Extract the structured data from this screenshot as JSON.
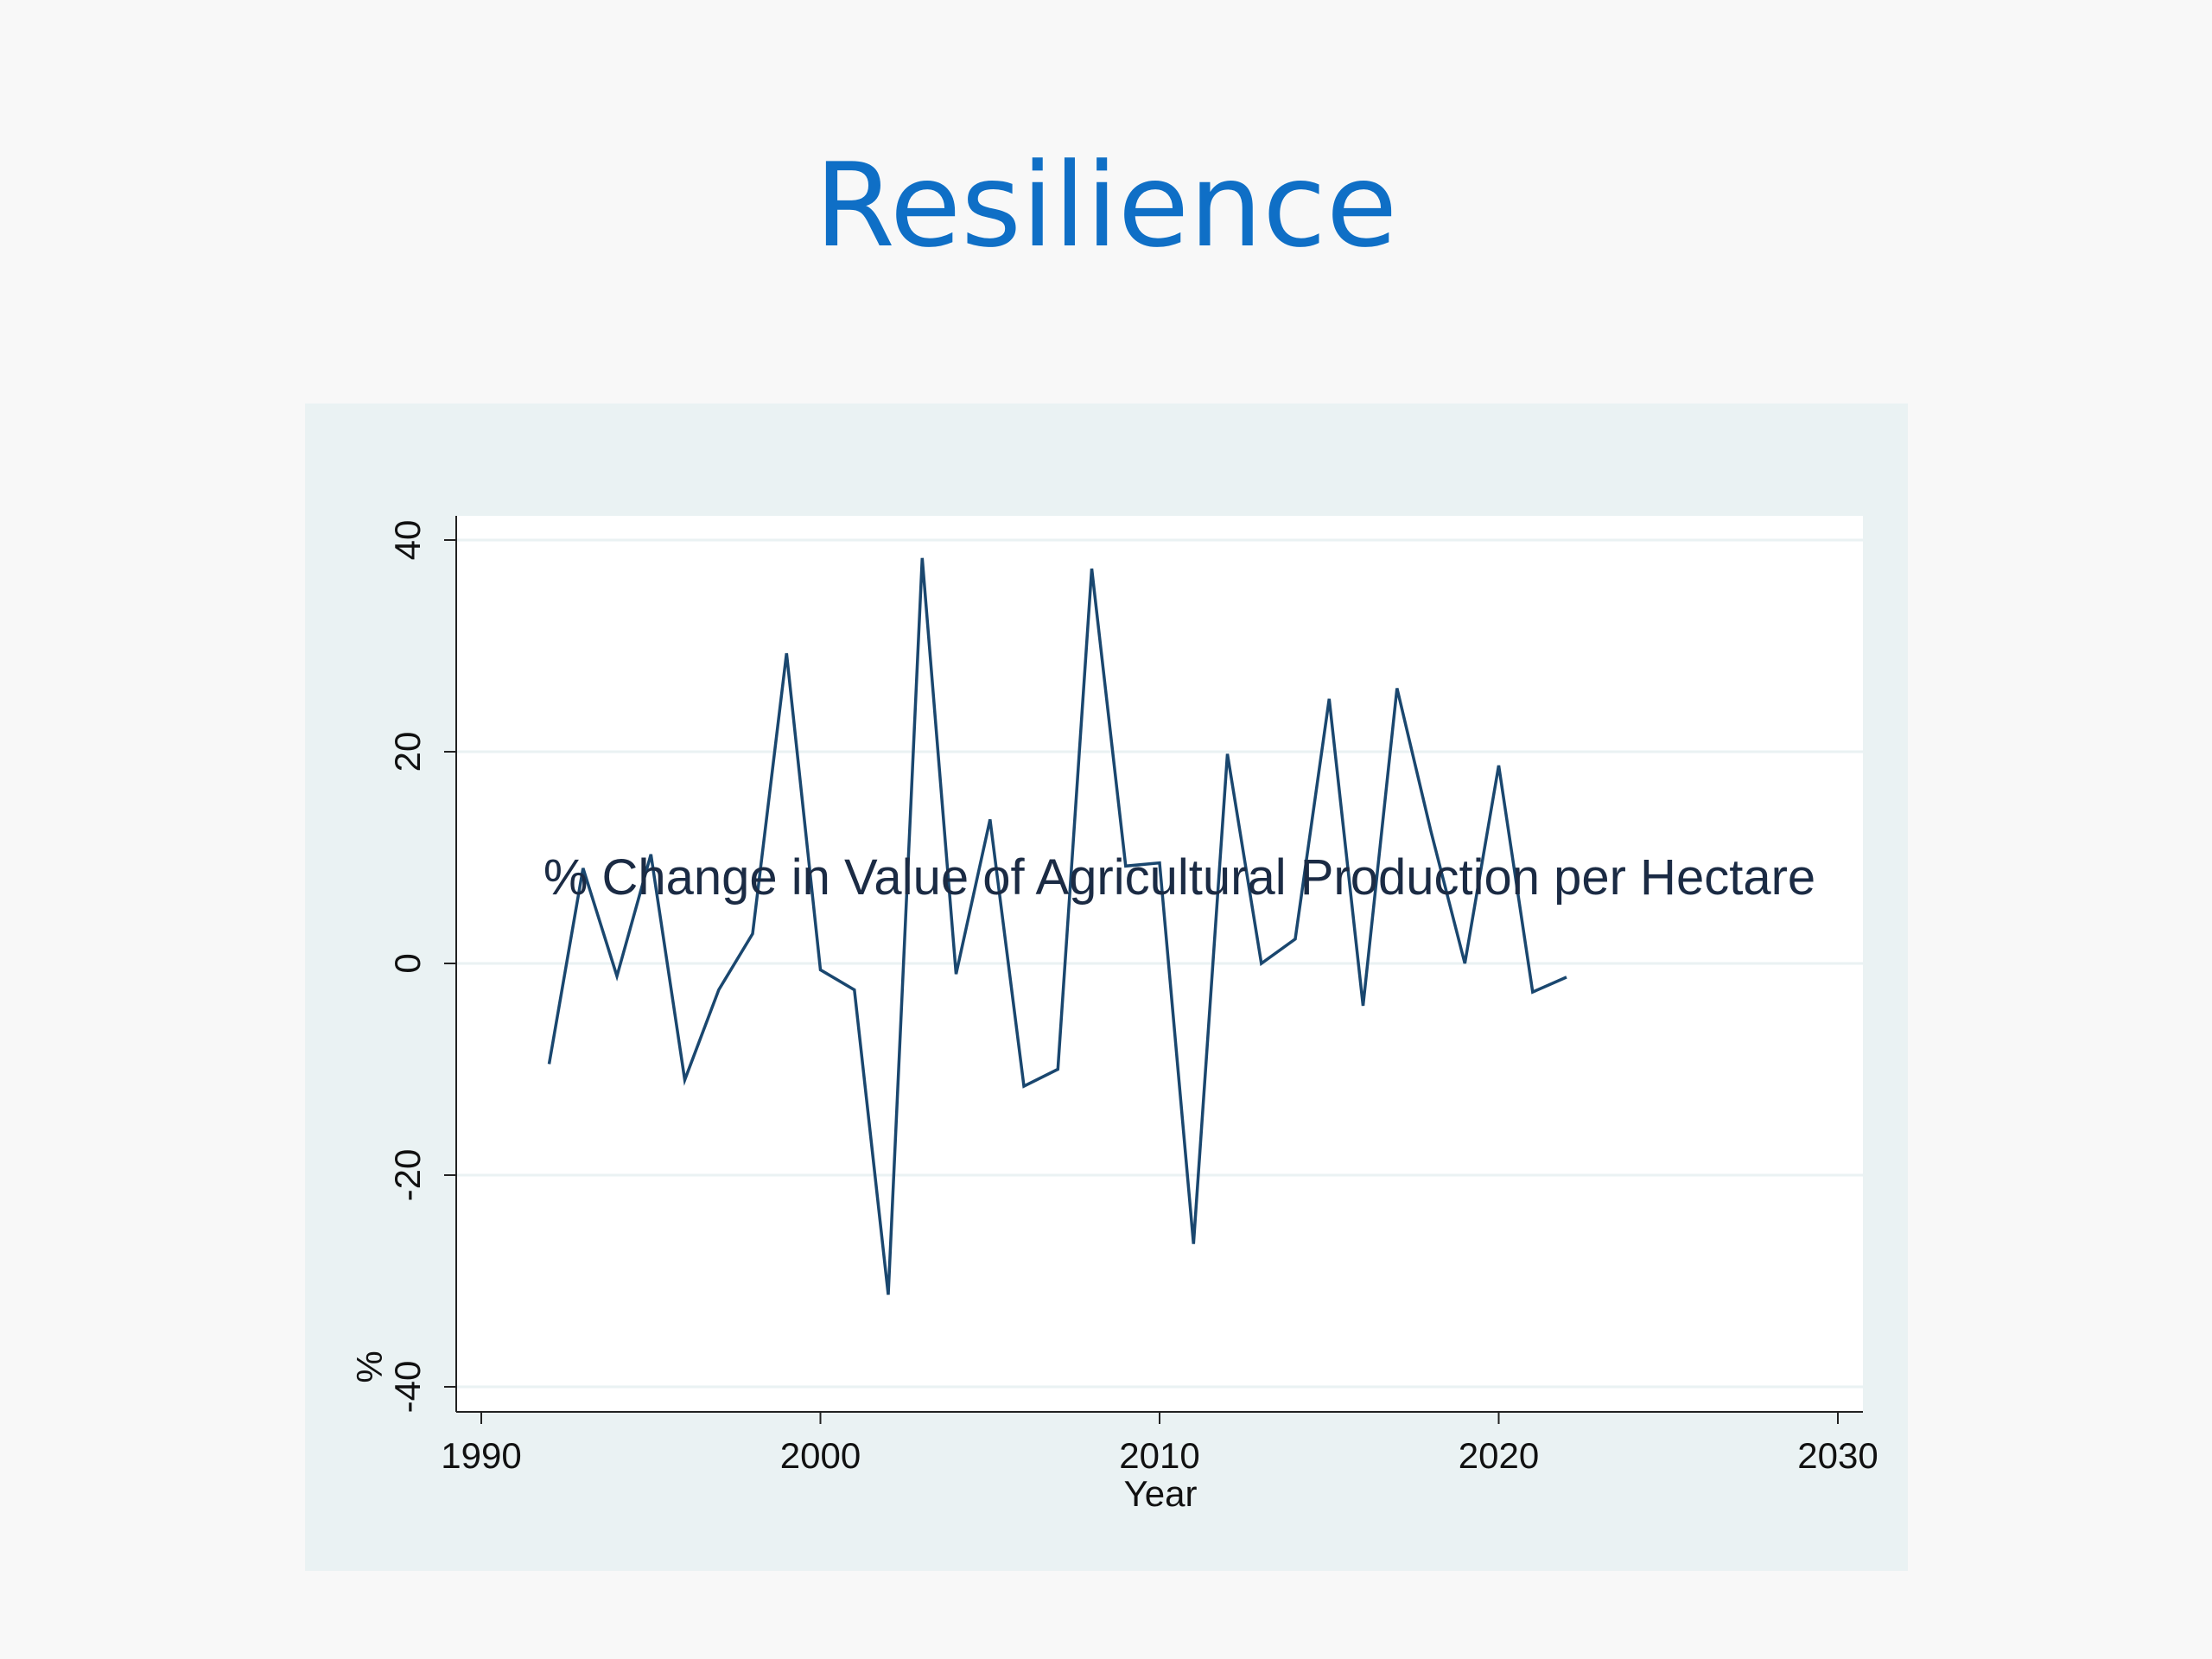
{
  "slide": {
    "title": "Resilience"
  },
  "colors": {
    "title": "#0f6fc6",
    "panel_background": "#eaf2f3",
    "plot_background": "#ffffff",
    "line": "#1a476f",
    "grid": "#eaf2f3",
    "axis": "#222222"
  },
  "chart_data": {
    "type": "line",
    "title": "% Change in Value of Agricultural Production per Hectare",
    "xlabel": "Year",
    "ylabel": "%",
    "xlim": [
      1990,
      2030
    ],
    "ylim": [
      -40,
      40
    ],
    "xticks": [
      1990,
      2000,
      2010,
      2020,
      2030
    ],
    "yticks": [
      -40,
      -20,
      0,
      20,
      40
    ],
    "grid": true,
    "legend": "none",
    "series": [
      {
        "x": [
          1992,
          1993,
          1994,
          1995,
          1996,
          1997,
          1998,
          1999,
          2000,
          2001,
          2002,
          2003,
          2004,
          2005,
          2006,
          2007,
          2008,
          2009,
          2010,
          2011,
          2012,
          2013,
          2014,
          2015,
          2016,
          2017,
          2018,
          2019,
          2020,
          2021,
          2022
        ],
        "values": [
          -9.5,
          9,
          -1.2,
          10.3,
          -11,
          -2.5,
          2.8,
          29.3,
          -0.6,
          -2.5,
          -31.3,
          38.3,
          -1,
          13.6,
          -11.6,
          -10,
          37.3,
          9.2,
          9.5,
          -26.5,
          19.8,
          0,
          2.3,
          25,
          -4,
          26,
          12.5,
          0,
          18.7,
          -2.7,
          -1.3
        ]
      }
    ]
  }
}
